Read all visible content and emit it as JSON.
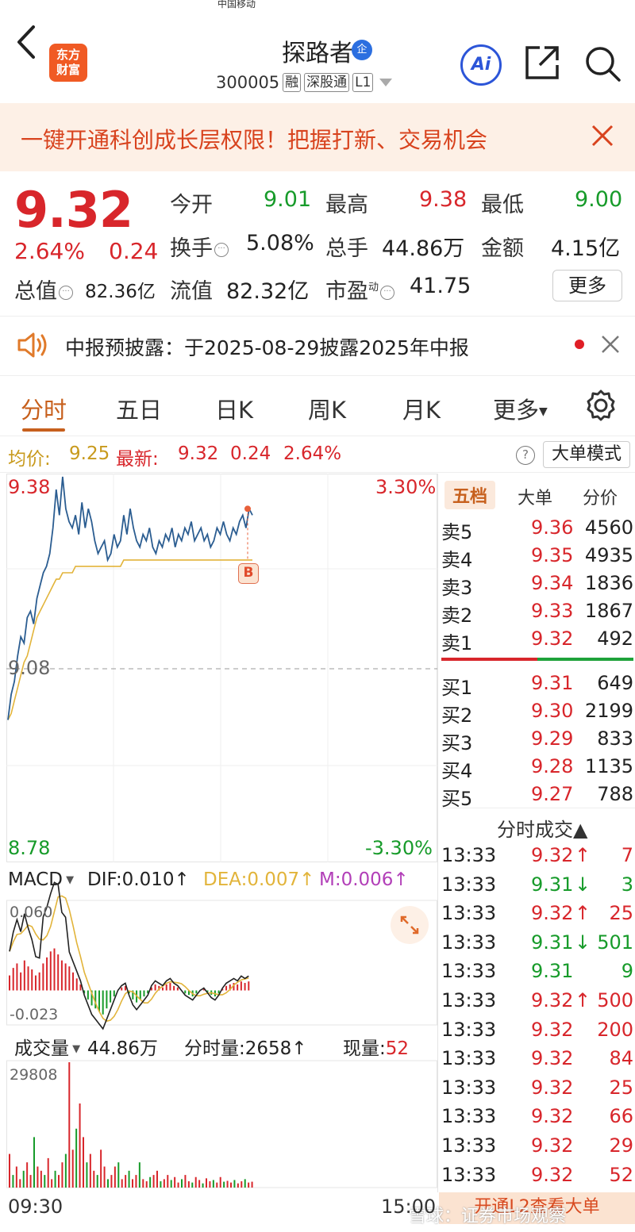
{
  "status_bar": {
    "carrier": "中国移动"
  },
  "header": {
    "logo_line1": "东方",
    "logo_line2": "财富",
    "stock_name": "探路者",
    "enterprise_badge": "企",
    "code": "300005",
    "tags": [
      "融",
      "深股通",
      "L1"
    ],
    "ai_label": "Ai",
    "icons": [
      "back-icon",
      "share-icon",
      "search-icon"
    ]
  },
  "banner": {
    "text": "一键开通科创成长层权限！把握打新、交易机会"
  },
  "quote": {
    "price": "9.32",
    "change_pct": "2.64%",
    "change": "0.24",
    "open_label": "今开",
    "open": "9.01",
    "high_label": "最高",
    "high": "9.38",
    "low_label": "最低",
    "low": "9.00",
    "turnover_label": "换手",
    "turnover": "5.08%",
    "volume_label": "总手",
    "volume": "44.86万",
    "amount_label": "金额",
    "amount": "4.15亿",
    "mcap_label": "总值",
    "mcap": "82.36亿",
    "float_label": "流值",
    "float": "82.32亿",
    "pe_label": "市盈",
    "pe_sup": "动",
    "pe": "41.75",
    "more_label": "更多"
  },
  "notice": {
    "text": "中报预披露：于2025-08-29披露2025年中报"
  },
  "tabs": [
    "分时",
    "五日",
    "日K",
    "周K",
    "月K",
    "更多"
  ],
  "avgline": {
    "avg_label": "均价:",
    "avg": "9.25",
    "last_label": "最新:",
    "last": "9.32",
    "chg": "0.24",
    "chg_pct": "2.64%",
    "help": "?",
    "mode_btn": "大单模式"
  },
  "chart_data": [
    {
      "type": "line",
      "title": "",
      "x_start": "09:30",
      "x_end": "15:00",
      "y_max_label": "9.38",
      "y_mid_label": "9.08",
      "y_min_label": "8.78",
      "pct_max_label": "3.30%",
      "pct_min_label": "-3.30%",
      "ylim": [
        8.78,
        9.38
      ],
      "marker_label": "B",
      "series": [
        {
          "values": [
            9.0,
            9.04,
            9.06,
            9.1,
            9.13,
            9.12,
            9.16,
            9.17,
            9.15,
            9.19,
            9.21,
            9.23,
            9.24,
            9.26,
            9.3,
            9.36,
            9.32,
            9.38,
            9.33,
            9.31,
            9.3,
            9.32,
            9.29,
            9.34,
            9.3,
            9.33,
            9.31,
            9.28,
            9.26,
            9.27,
            9.28,
            9.25,
            9.26,
            9.29,
            9.27,
            9.28,
            9.32,
            9.29,
            9.33,
            9.3,
            9.28,
            9.27,
            9.29,
            9.28,
            9.3,
            9.27,
            9.26,
            9.28,
            9.27,
            9.29,
            9.28,
            9.3,
            9.27,
            9.29,
            9.28,
            9.3,
            9.29,
            9.31,
            9.28,
            9.29,
            9.3,
            9.28,
            9.29,
            9.27,
            9.28,
            9.3,
            9.29,
            9.31,
            9.29,
            9.28,
            9.3,
            9.29,
            9.31,
            9.32,
            9.3,
            9.33,
            9.32
          ]
        },
        {
          "values": [
            9.0,
            9.01,
            9.03,
            9.05,
            9.07,
            9.09,
            9.1,
            9.12,
            9.14,
            9.16,
            9.17,
            9.18,
            9.19,
            9.2,
            9.21,
            9.22,
            9.22,
            9.23,
            9.23,
            9.23,
            9.23,
            9.24,
            9.24,
            9.24,
            9.24,
            9.24,
            9.24,
            9.24,
            9.24,
            9.24,
            9.24,
            9.24,
            9.24,
            9.24,
            9.24,
            9.24,
            9.25,
            9.25,
            9.25,
            9.25,
            9.25,
            9.25,
            9.25,
            9.25,
            9.25,
            9.25,
            9.25,
            9.25,
            9.25,
            9.25,
            9.25,
            9.25,
            9.25,
            9.25,
            9.25,
            9.25,
            9.25,
            9.25,
            9.25,
            9.25,
            9.25,
            9.25,
            9.25,
            9.25,
            9.25,
            9.25,
            9.25,
            9.25,
            9.25,
            9.25,
            9.25,
            9.25,
            9.25,
            9.25,
            9.25,
            9.25,
            9.25
          ]
        }
      ]
    },
    {
      "type": "bar",
      "title": "MACD",
      "dif_label": "DIF:0.010↑",
      "dea_label": "DEA:0.007↑",
      "m_label": "M:0.006↑",
      "y_max_label": "0.060",
      "y_min_label": "-0.023",
      "ylim": [
        -0.023,
        0.06
      ],
      "values": [
        0.01,
        0.015,
        0.018,
        0.012,
        0.02,
        0.016,
        0.014,
        0.01,
        0.012,
        0.018,
        0.022,
        0.026,
        0.028,
        0.024,
        0.02,
        0.018,
        0.016,
        0.012,
        0.008,
        0.004,
        -0.002,
        -0.006,
        -0.01,
        -0.012,
        -0.014,
        -0.016,
        -0.012,
        -0.008,
        -0.004,
        0.0,
        0.002,
        0.003,
        -0.002,
        -0.006,
        -0.008,
        -0.006,
        -0.004,
        -0.002,
        0.002,
        0.004,
        0.003,
        0.002,
        0.004,
        0.005,
        0.003,
        0.002,
        0.0,
        -0.002,
        -0.003,
        -0.004,
        -0.002,
        0.0,
        0.001,
        -0.001,
        -0.003,
        -0.004,
        -0.002,
        0.001,
        0.003,
        0.004,
        0.005,
        0.004,
        0.006,
        0.005,
        0.006
      ]
    },
    {
      "type": "bar",
      "title": "成交量",
      "total_label": "44.86万",
      "fen_label": "分时量:2658↑",
      "now_label": "现量:",
      "now_value": "52",
      "y_max_label": "29808",
      "ylim": [
        0,
        29808
      ],
      "values": [
        8000,
        3000,
        5000,
        2000,
        4000,
        6000,
        3000,
        12000,
        5000,
        4000,
        3000,
        7000,
        2000,
        4000,
        3000,
        6000,
        8000,
        29808,
        9000,
        14000,
        20000,
        12000,
        6000,
        8000,
        4000,
        3000,
        9000,
        5000,
        2000,
        3000,
        5000,
        6000,
        2000,
        3000,
        4000,
        2000,
        3000,
        6000,
        2000,
        1500,
        2500,
        3000,
        4000,
        1500,
        2000,
        3000,
        1800,
        2500,
        1200,
        2000,
        3000,
        1500,
        1200,
        2500,
        1800,
        1000,
        2200,
        1500,
        1800,
        1200,
        2500,
        1400,
        1600,
        1200,
        1800,
        1000,
        1500,
        2000,
        1200,
        1400
      ]
    }
  ],
  "orderbook": {
    "tabs": [
      "五档",
      "大单",
      "分价"
    ],
    "asks": [
      {
        "label": "卖5",
        "price": "9.36",
        "vol": "4560"
      },
      {
        "label": "卖4",
        "price": "9.35",
        "vol": "4935"
      },
      {
        "label": "卖3",
        "price": "9.34",
        "vol": "1836"
      },
      {
        "label": "卖2",
        "price": "9.33",
        "vol": "1867"
      },
      {
        "label": "卖1",
        "price": "9.32",
        "vol": "492"
      }
    ],
    "bids": [
      {
        "label": "买1",
        "price": "9.31",
        "vol": "649"
      },
      {
        "label": "买2",
        "price": "9.30",
        "vol": "2199"
      },
      {
        "label": "买3",
        "price": "9.29",
        "vol": "833"
      },
      {
        "label": "买4",
        "price": "9.28",
        "vol": "1135"
      },
      {
        "label": "买5",
        "price": "9.27",
        "vol": "788"
      }
    ],
    "trades_title": "分时成交▲",
    "trades": [
      {
        "time": "13:33",
        "price": "9.32",
        "dir": "↑",
        "vol": "7",
        "c": "red"
      },
      {
        "time": "13:33",
        "price": "9.31",
        "dir": "↓",
        "vol": "3",
        "c": "green"
      },
      {
        "time": "13:33",
        "price": "9.32",
        "dir": "↑",
        "vol": "25",
        "c": "red"
      },
      {
        "time": "13:33",
        "price": "9.31",
        "dir": "↓",
        "vol": "501",
        "c": "green"
      },
      {
        "time": "13:33",
        "price": "9.31",
        "dir": "",
        "vol": "9",
        "c": "green"
      },
      {
        "time": "13:33",
        "price": "9.32",
        "dir": "↑",
        "vol": "500",
        "c": "red"
      },
      {
        "time": "13:33",
        "price": "9.32",
        "dir": "",
        "vol": "200",
        "c": "red"
      },
      {
        "time": "13:33",
        "price": "9.32",
        "dir": "",
        "vol": "84",
        "c": "red"
      },
      {
        "time": "13:33",
        "price": "9.32",
        "dir": "",
        "vol": "25",
        "c": "red"
      },
      {
        "time": "13:33",
        "price": "9.32",
        "dir": "",
        "vol": "66",
        "c": "red"
      },
      {
        "time": "13:33",
        "price": "9.32",
        "dir": "",
        "vol": "29",
        "c": "red"
      },
      {
        "time": "13:33",
        "price": "9.32",
        "dir": "",
        "vol": "52",
        "c": "red"
      }
    ]
  },
  "footer": {
    "l2_banner": "开通L2查看大单",
    "watermark": "雪球：证券市场观察",
    "macd_select": "MACD",
    "vol_select": "成交量"
  },
  "colors": {
    "red": "#d8262b",
    "green": "#179b2a",
    "accent": "#c7601d",
    "price_line": "#2b5d91",
    "avg_line": "#e2b43a"
  }
}
